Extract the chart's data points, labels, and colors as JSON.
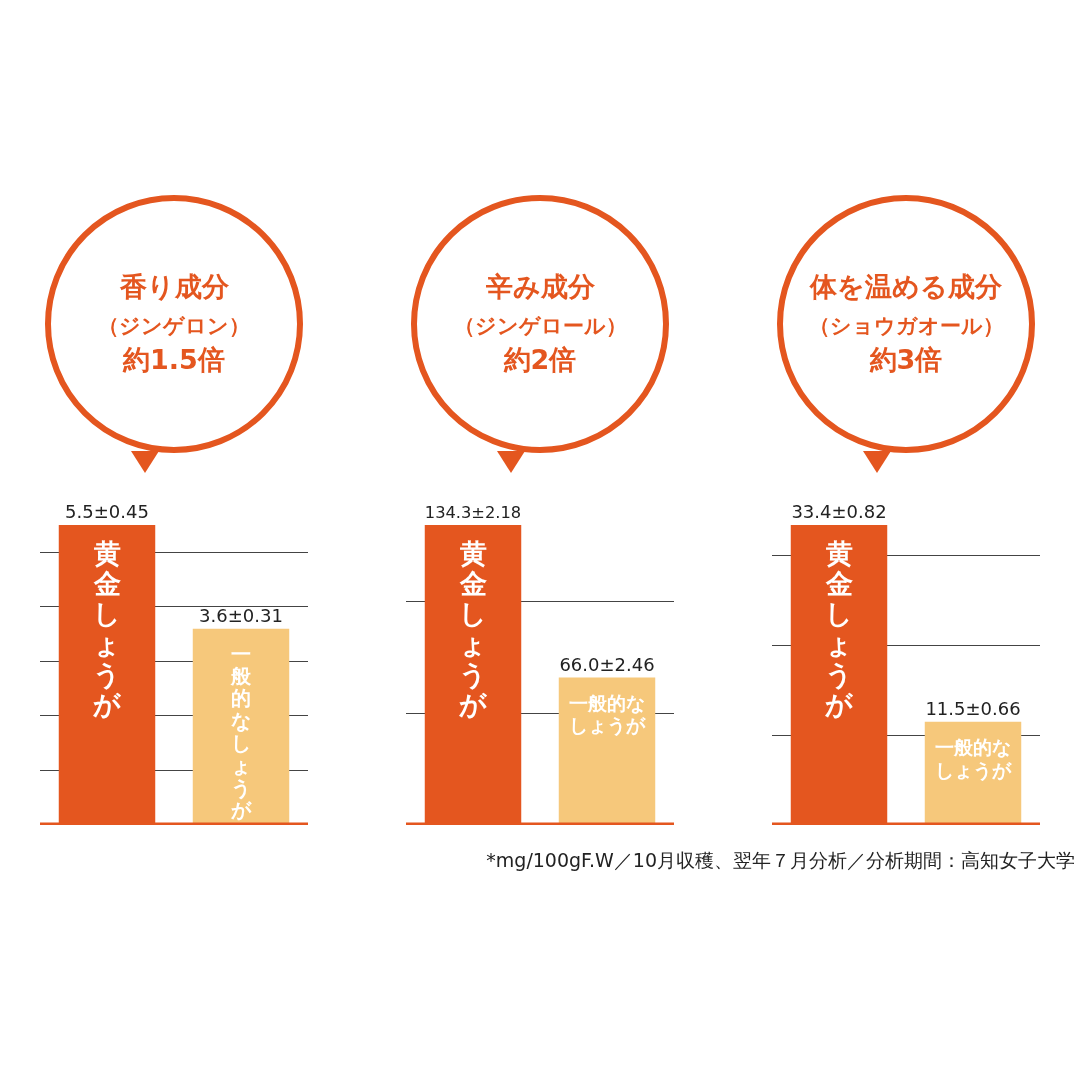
{
  "chart_data": [
    {
      "type": "bar",
      "title": "香り成分（ジンゲロン）約1.5倍",
      "categories": [
        "黄金しょうが",
        "一般的なしょうが"
      ],
      "values": [
        5.5,
        3.6
      ],
      "colors": [
        "#e4561f",
        "#f6c87b"
      ],
      "value_labels": [
        "5.5±0.45",
        "3.6±0.31"
      ],
      "ylim": [
        0,
        5.5
      ],
      "yticks": [
        {
          "value": 1,
          "label": null
        },
        {
          "value": 2,
          "label": null
        },
        {
          "value": 3,
          "label": null
        },
        {
          "value": 4,
          "label": null
        },
        {
          "value": 5,
          "label": null
        }
      ],
      "grid": "y",
      "tick_labels": false
    },
    {
      "type": "bar",
      "title": "辛み成分（ジンゲロール）約2倍",
      "categories": [
        "黄金しょうが",
        "一般的なしょうが"
      ],
      "values": [
        134.3,
        66.0
      ],
      "colors": [
        "#e4561f",
        "#f6c87b"
      ],
      "value_labels": [
        "134.3±2.18",
        "66.0±2.46"
      ],
      "ylim": [
        0,
        134.3
      ],
      "yticks": [
        {
          "value": 50,
          "label": null
        },
        {
          "value": 100,
          "label": null
        }
      ],
      "grid": "y",
      "tick_labels": false
    },
    {
      "type": "bar",
      "title": "体を温める成分（ショウガオール）約3倍",
      "categories": [
        "黄金しょうが",
        "一般的なしょうが"
      ],
      "values": [
        33.4,
        11.5
      ],
      "colors": [
        "#e4561f",
        "#f6c87b"
      ],
      "value_labels": [
        "33.4±0.82",
        "11.5±0.66"
      ],
      "ylim": [
        0,
        33.4
      ],
      "yticks": [
        {
          "value": 10,
          "label": null
        },
        {
          "value": 20,
          "label": null
        },
        {
          "value": 30,
          "label": null
        }
      ],
      "grid": "y",
      "tick_labels": false,
      "annotations": [
        "*mg/100gF.W／10月収穫、翌年７月分析／分析期間：高知女子大学"
      ]
    }
  ]
}
